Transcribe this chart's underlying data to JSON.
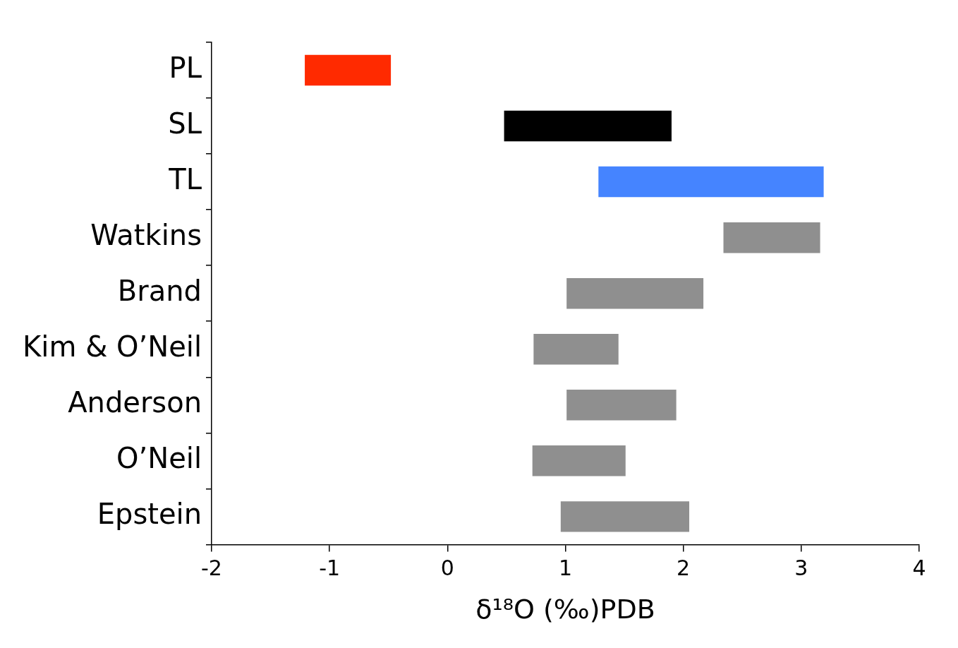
{
  "chart_data": {
    "type": "bar",
    "orientation": "horizontal",
    "xlabel": "δ¹⁸O (‰)PDB",
    "categories": [
      "PL",
      "SL",
      "TL",
      "Watkins",
      "Brand",
      "Kim & O’Neil",
      "Anderson",
      "O’Neil",
      "Epstein"
    ],
    "base": [
      -1.21,
      0.48,
      1.28,
      2.34,
      1.01,
      0.73,
      1.01,
      0.72,
      0.96
    ],
    "values": [
      0.73,
      1.42,
      1.91,
      0.82,
      1.16,
      0.72,
      0.93,
      0.79,
      1.09
    ],
    "colors": [
      "#ff2a00",
      "#000000",
      "#4584ff",
      "#8f8f8f",
      "#8f8f8f",
      "#8f8f8f",
      "#8f8f8f",
      "#8f8f8f",
      "#8f8f8f"
    ],
    "xlim": [
      -2,
      4
    ],
    "xticks": [
      -2,
      -1,
      0,
      1,
      2,
      3,
      4
    ],
    "grid": false,
    "legend": false
  }
}
